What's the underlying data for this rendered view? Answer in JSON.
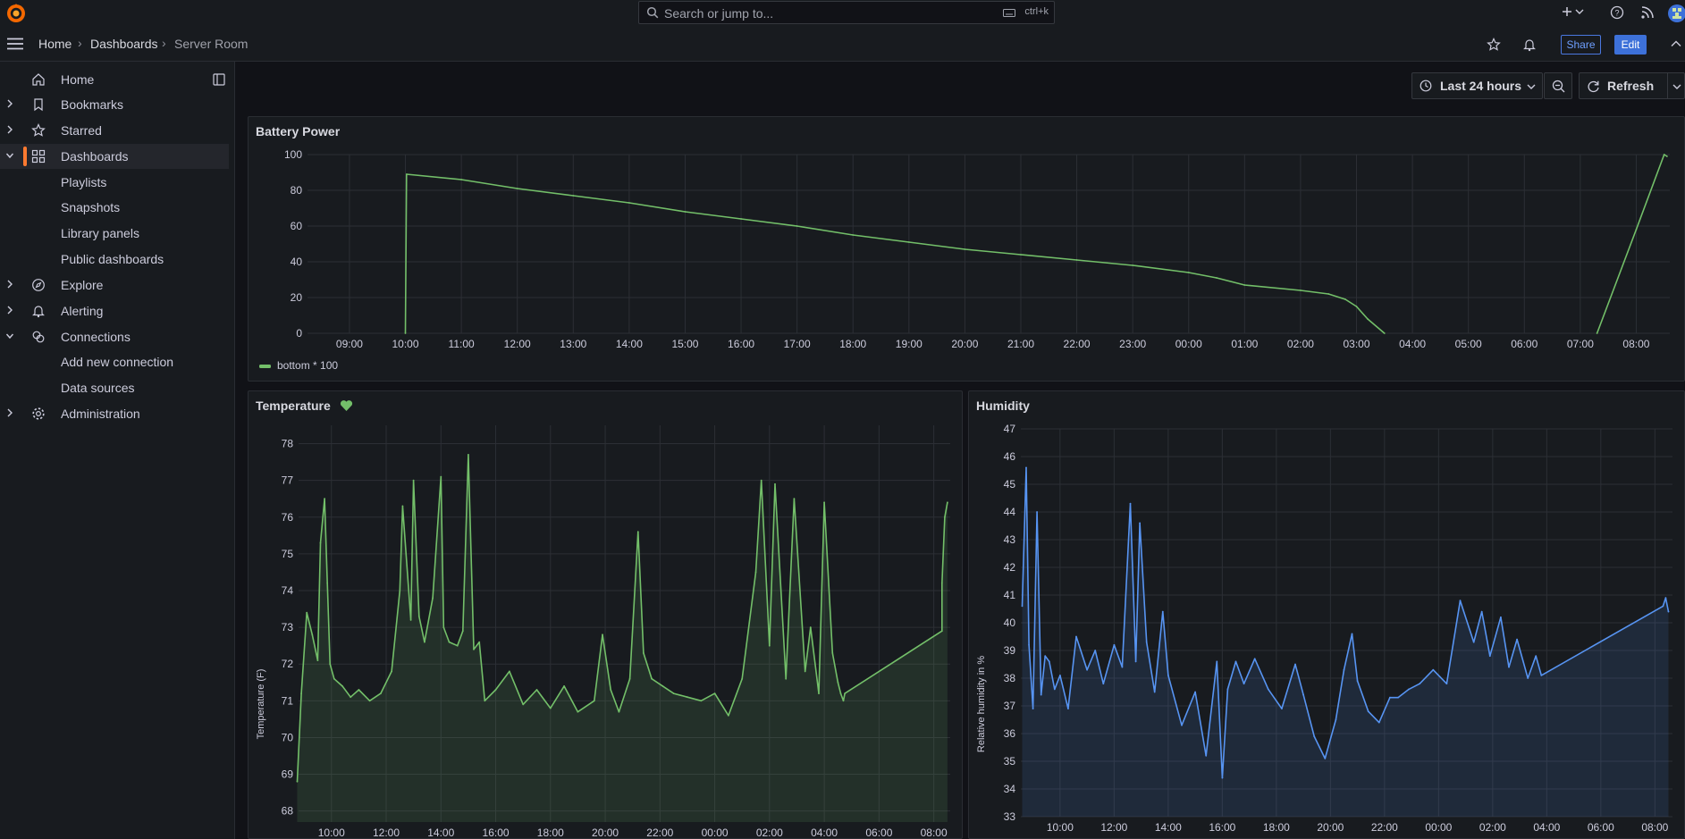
{
  "topbar": {
    "search_placeholder": "Search or jump to...",
    "search_shortcut": "ctrl+k",
    "icons": [
      "grafana-logo-icon",
      "search-icon",
      "keyboard-icon",
      "plus-icon",
      "chevron-down-icon",
      "help-icon",
      "rss-icon",
      "avatar"
    ]
  },
  "breadcrumb": [
    "Home",
    "Dashboards",
    "Server Room"
  ],
  "nav_actions": {
    "share": "Share",
    "edit": "Edit"
  },
  "sidebar": {
    "items": [
      {
        "label": "Home",
        "icon": "home-icon"
      },
      {
        "label": "Bookmarks",
        "icon": "bookmark-icon"
      },
      {
        "label": "Starred",
        "icon": "star-icon"
      },
      {
        "label": "Dashboards",
        "icon": "apps-icon"
      },
      {
        "label": "Playlists"
      },
      {
        "label": "Snapshots"
      },
      {
        "label": "Library panels"
      },
      {
        "label": "Public dashboards"
      },
      {
        "label": "Explore",
        "icon": "compass-icon"
      },
      {
        "label": "Alerting",
        "icon": "bell-icon"
      },
      {
        "label": "Connections",
        "icon": "link-icon"
      },
      {
        "label": "Add new connection"
      },
      {
        "label": "Data sources"
      },
      {
        "label": "Administration",
        "icon": "cog-icon"
      }
    ]
  },
  "toolbar": {
    "time_range": "Last 24 hours",
    "refresh": "Refresh"
  },
  "colors": {
    "accent": "#ff7a30",
    "green": "#73bf69",
    "blue": "#5794f2",
    "panel": "#181b1f",
    "bg": "#111217"
  },
  "battery": {
    "title": "Battery Power",
    "legend": "bottom * 100",
    "y_ticks": [
      "100",
      "80",
      "60",
      "40",
      "20",
      "0"
    ],
    "x_ticks": [
      "09:00",
      "10:00",
      "11:00",
      "12:00",
      "13:00",
      "14:00",
      "15:00",
      "16:00",
      "17:00",
      "18:00",
      "19:00",
      "20:00",
      "21:00",
      "22:00",
      "23:00",
      "00:00",
      "01:00",
      "02:00",
      "03:00",
      "04:00",
      "05:00",
      "06:00",
      "07:00",
      "08:00"
    ]
  },
  "temperature": {
    "title": "Temperature",
    "ylabel": "Temperature (F)",
    "y_ticks": [
      "78",
      "77",
      "76",
      "75",
      "74",
      "73",
      "72",
      "71",
      "70",
      "69",
      "68"
    ],
    "x_ticks": [
      "10:00",
      "12:00",
      "14:00",
      "16:00",
      "18:00",
      "20:00",
      "22:00",
      "00:00",
      "02:00",
      "04:00",
      "06:00",
      "08:00"
    ]
  },
  "humidity": {
    "title": "Humidity",
    "ylabel": "Relative humidity in %",
    "y_ticks": [
      "47",
      "46",
      "45",
      "44",
      "43",
      "42",
      "41",
      "40",
      "39",
      "38",
      "37",
      "36",
      "35",
      "34",
      "33"
    ],
    "x_ticks": [
      "10:00",
      "12:00",
      "14:00",
      "16:00",
      "18:00",
      "20:00",
      "22:00",
      "00:00",
      "02:00",
      "04:00",
      "06:00",
      "08:00"
    ]
  },
  "chart_data": [
    {
      "type": "line",
      "title": "Battery Power",
      "series": [
        {
          "name": "bottom * 100",
          "x": [
            9.0,
            10.0,
            10.02,
            11.0,
            12.0,
            13.0,
            14.0,
            15.0,
            16.0,
            17.0,
            18.0,
            19.0,
            20.0,
            21.0,
            22.0,
            23.0,
            24.0,
            24.5,
            25.0,
            26.0,
            26.5,
            26.8,
            27.0,
            27.2,
            27.5,
            29.0,
            31.3,
            32.0,
            32.5,
            32.55
          ],
          "values": [
            null,
            0,
            89,
            86,
            81,
            77,
            73,
            68,
            64,
            60,
            55,
            51,
            47,
            44,
            41,
            38,
            34,
            31,
            27,
            24,
            22,
            19,
            15,
            8,
            0,
            null,
            0,
            58,
            100,
            99
          ]
        }
      ],
      "xlabel": "",
      "ylabel": "",
      "ylim": [
        0,
        100
      ],
      "xlim": [
        8.25,
        32.6
      ]
    },
    {
      "type": "area",
      "title": "Temperature",
      "series": [
        {
          "name": "Temperature",
          "x": [
            8.75,
            8.9,
            9.1,
            9.3,
            9.5,
            9.6,
            9.75,
            9.85,
            9.95,
            10.1,
            10.4,
            10.7,
            11.0,
            11.4,
            11.8,
            12.2,
            12.5,
            12.6,
            12.9,
            13.0,
            13.2,
            13.4,
            13.7,
            14.0,
            14.1,
            14.3,
            14.6,
            14.8,
            15.0,
            15.2,
            15.4,
            15.6,
            16.0,
            16.5,
            17.0,
            17.5,
            18.0,
            18.5,
            19.0,
            19.6,
            19.9,
            20.2,
            20.5,
            20.9,
            21.2,
            21.4,
            21.7,
            22.1,
            22.5,
            23.0,
            23.5,
            24.0,
            24.5,
            25.0,
            25.5,
            25.7,
            26.0,
            26.2,
            26.6,
            26.9,
            27.3,
            27.5,
            27.8,
            28.0,
            28.3,
            28.5,
            28.6,
            28.7,
            28.75,
            32.3,
            32.3,
            32.4,
            32.5
          ],
          "values": [
            68.8,
            71.2,
            73.4,
            72.8,
            72.1,
            75.3,
            76.5,
            74.2,
            72.0,
            71.6,
            71.4,
            71.1,
            71.3,
            71.0,
            71.2,
            71.8,
            74.0,
            76.3,
            73.2,
            77.0,
            73.3,
            72.6,
            73.8,
            77.1,
            73.0,
            72.6,
            72.5,
            72.9,
            77.7,
            72.4,
            72.6,
            71.0,
            71.3,
            71.8,
            70.9,
            71.3,
            70.8,
            71.4,
            70.7,
            71.0,
            72.8,
            71.3,
            70.7,
            71.6,
            75.6,
            72.3,
            71.6,
            71.4,
            71.2,
            71.1,
            71.0,
            71.2,
            70.6,
            71.6,
            74.5,
            77.0,
            72.5,
            76.9,
            71.6,
            76.5,
            71.8,
            73.0,
            71.2,
            76.4,
            72.3,
            71.5,
            71.2,
            71.0,
            71.2,
            72.9,
            74.2,
            76.0,
            76.4
          ]
        }
      ],
      "xlabel": "",
      "ylabel": "Temperature (F)",
      "ylim": [
        67.7,
        78.5
      ],
      "xlim": [
        8.8,
        32.6
      ]
    },
    {
      "type": "area",
      "title": "Humidity",
      "series": [
        {
          "name": "Humidity",
          "x": [
            8.6,
            8.75,
            8.85,
            9.0,
            9.15,
            9.3,
            9.45,
            9.6,
            9.8,
            10.0,
            10.3,
            10.6,
            11.0,
            11.3,
            11.6,
            12.0,
            12.3,
            12.6,
            12.8,
            12.95,
            13.2,
            13.5,
            13.8,
            14.0,
            14.5,
            15.0,
            15.4,
            15.8,
            16.0,
            16.2,
            16.5,
            16.8,
            17.2,
            17.7,
            18.2,
            18.7,
            19.0,
            19.4,
            19.8,
            20.2,
            20.5,
            20.8,
            21.0,
            21.4,
            21.8,
            22.2,
            22.5,
            22.9,
            23.3,
            23.8,
            24.3,
            24.8,
            25.3,
            25.6,
            25.9,
            26.3,
            26.6,
            26.9,
            27.3,
            27.6,
            27.8,
            32.3,
            32.4,
            32.5
          ],
          "values": [
            40.6,
            45.6,
            39.2,
            36.9,
            44.0,
            37.4,
            38.8,
            38.6,
            37.6,
            38.1,
            36.9,
            39.5,
            38.3,
            39.0,
            37.8,
            39.2,
            38.4,
            44.3,
            38.6,
            43.6,
            39.3,
            37.5,
            40.4,
            38.1,
            36.3,
            37.5,
            35.2,
            38.6,
            34.4,
            37.6,
            38.6,
            37.8,
            38.7,
            37.6,
            36.9,
            38.5,
            37.4,
            35.9,
            35.1,
            36.5,
            38.3,
            39.6,
            37.9,
            36.8,
            36.4,
            37.3,
            37.3,
            37.6,
            37.8,
            38.3,
            37.8,
            40.8,
            39.3,
            40.4,
            38.8,
            40.2,
            38.4,
            39.4,
            38.0,
            38.8,
            38.1,
            40.6,
            40.9,
            40.4
          ]
        }
      ],
      "xlabel": "",
      "ylabel": "Relative humidity in %",
      "ylim": [
        33,
        47
      ],
      "xlim": [
        8.55,
        32.65
      ]
    }
  ]
}
